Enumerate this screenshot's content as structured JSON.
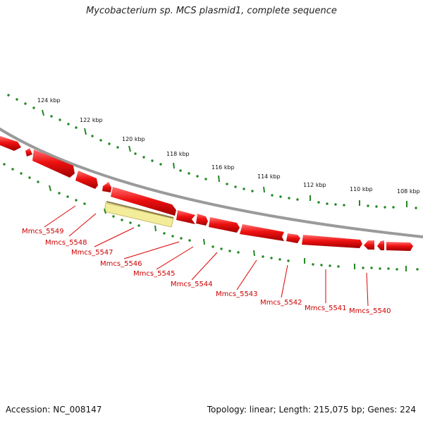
{
  "title": "Mycobacterium sp. MCS plasmid1, complete sequence",
  "accession_text": "Accession: NC_008147",
  "topology_text": "Topology: linear; Length: 215,075 bp; Genes: 224",
  "scale_labels": [
    "124 kbp",
    "122 kbp",
    "120 kbp",
    "118 kbp",
    "116 kbp",
    "114 kbp",
    "112 kbp",
    "110 kbp",
    "108 kbp"
  ],
  "gene_labels": [
    "Mmcs_5549",
    "Mmcs_5548",
    "Mmcs_5547",
    "Mmcs_5546",
    "Mmcs_5545",
    "Mmcs_5544",
    "Mmcs_5543",
    "Mmcs_5542",
    "Mmcs_5541",
    "Mmcs_5540"
  ],
  "colors": {
    "backbone": "#8a8a8a",
    "gene": "#ee1111",
    "gene_dark": "#a00000",
    "tick": "#228822",
    "highlight": "#f3ec9a",
    "label": "#cc0000"
  }
}
